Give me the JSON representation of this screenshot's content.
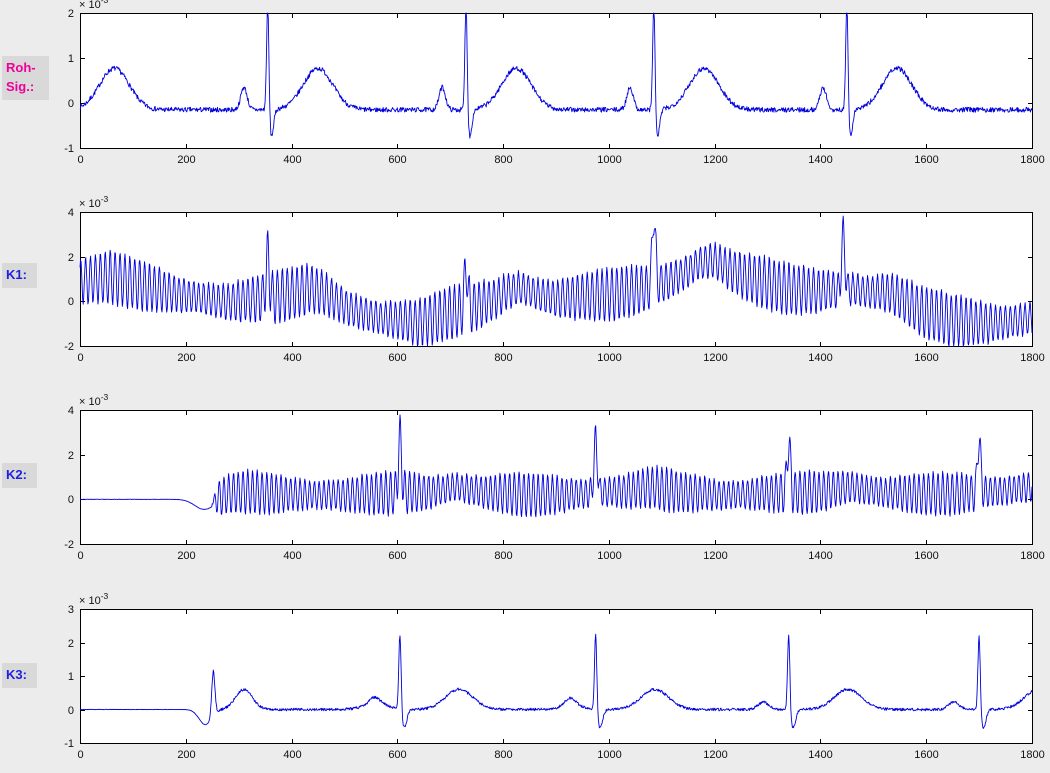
{
  "figure": {
    "background": "#ececec",
    "axes_background": "#ffffff",
    "axis_color": "#000000",
    "line_color": "#0000dd",
    "tick_label_color": "#111111",
    "label_box_background": "#d9d9d9"
  },
  "labels": [
    {
      "lines": [
        "Roh-",
        "Sig.:"
      ],
      "color": "#ee0099"
    },
    {
      "lines": [
        "K1:"
      ],
      "color": "#2020e0"
    },
    {
      "lines": [
        "K2:"
      ],
      "color": "#2020e0"
    },
    {
      "lines": [
        "K3:"
      ],
      "color": "#2020e0"
    }
  ],
  "chart_data": [
    {
      "type": "line",
      "name": "Roh-Sig.",
      "title": "",
      "xlabel": "",
      "ylabel": "",
      "unit_exponent": {
        "base": "× 10",
        "power": "-3"
      },
      "xlim": [
        0,
        1800
      ],
      "ylim": [
        -1,
        2
      ],
      "xticks": [
        0,
        200,
        400,
        600,
        800,
        1000,
        1200,
        1400,
        1600,
        1800
      ],
      "x_tick_labels": [
        "0",
        "200",
        "400",
        "600",
        "800",
        "1000",
        "1200",
        "1400",
        "1600",
        "1800"
      ],
      "yticks": [
        -1,
        0,
        1,
        2
      ],
      "y_tick_labels": [
        "-1",
        "0",
        "1",
        "2"
      ],
      "grid": false,
      "legend": null,
      "signal": {
        "kind": "ecg",
        "seed": 7,
        "baseline": -0.15,
        "noise": 0.055,
        "beats": [
          {
            "x": -30
          },
          {
            "x": 355
          },
          {
            "x": 730
          },
          {
            "x": 1085
          },
          {
            "x": 1450
          }
        ],
        "qrs": {
          "amp": 2.45,
          "width": 2.2,
          "dip": -0.6,
          "dip_offset": 7,
          "dip_width": 4
        },
        "p": {
          "offset": -45,
          "amp": 0.5,
          "width": 6
        },
        "t": {
          "offset": 95,
          "amp": 0.92,
          "width": 28
        }
      }
    },
    {
      "type": "line",
      "name": "K1",
      "title": "",
      "xlabel": "",
      "ylabel": "",
      "unit_exponent": {
        "base": "× 10",
        "power": "-3"
      },
      "xlim": [
        0,
        1800
      ],
      "ylim": [
        -2,
        4
      ],
      "xticks": [
        0,
        200,
        400,
        600,
        800,
        1000,
        1200,
        1400,
        1600,
        1800
      ],
      "x_tick_labels": [
        "0",
        "200",
        "400",
        "600",
        "800",
        "1000",
        "1200",
        "1400",
        "1600",
        "1800"
      ],
      "yticks": [
        -2,
        0,
        2,
        4
      ],
      "y_tick_labels": [
        "-2",
        "0",
        "2",
        "4"
      ],
      "grid": false,
      "legend": null,
      "signal": {
        "kind": "osc",
        "seed": 11,
        "noise": 0.08,
        "drift": [
          [
            0,
            0.9
          ],
          [
            60,
            1.1
          ],
          [
            130,
            0.6
          ],
          [
            200,
            0.25
          ],
          [
            280,
            -0.05
          ],
          [
            355,
            0.2
          ],
          [
            430,
            0.3
          ],
          [
            500,
            -0.3
          ],
          [
            570,
            -0.75
          ],
          [
            640,
            -0.95
          ],
          [
            700,
            -0.55
          ],
          [
            760,
            -0.15
          ],
          [
            830,
            0.25
          ],
          [
            900,
            0.1
          ],
          [
            980,
            0.25
          ],
          [
            1060,
            0.5
          ],
          [
            1140,
            1.1
          ],
          [
            1200,
            1.55
          ],
          [
            1270,
            1.0
          ],
          [
            1340,
            0.55
          ],
          [
            1400,
            0.45
          ],
          [
            1460,
            0.55
          ],
          [
            1520,
            0.1
          ],
          [
            1590,
            -0.5
          ],
          [
            1660,
            -0.9
          ],
          [
            1730,
            -1.0
          ],
          [
            1800,
            -0.75
          ]
        ],
        "osc": {
          "period": 9.3,
          "amp": 0.95,
          "amp_mod": 0.25,
          "mod_period": 310,
          "phase": 0.7
        },
        "spike": {
          "width": 3
        },
        "beats": [
          {
            "x": 355,
            "amp": 1.9
          },
          {
            "x": 730,
            "amp": 1.9
          },
          {
            "x": 1085,
            "amp": 3.3
          },
          {
            "x": 1443,
            "amp": 2.5
          }
        ],
        "t": {
          "offset": 95,
          "amp": 0.35,
          "width": 30
        }
      }
    },
    {
      "type": "line",
      "name": "K2",
      "title": "",
      "xlabel": "",
      "ylabel": "",
      "unit_exponent": {
        "base": "× 10",
        "power": "-3"
      },
      "xlim": [
        0,
        1800
      ],
      "ylim": [
        -2,
        4
      ],
      "xticks": [
        0,
        200,
        400,
        600,
        800,
        1000,
        1200,
        1400,
        1600,
        1800
      ],
      "x_tick_labels": [
        "0",
        "200",
        "400",
        "600",
        "800",
        "1000",
        "1200",
        "1400",
        "1600",
        "1800"
      ],
      "yticks": [
        -2,
        0,
        2,
        4
      ],
      "y_tick_labels": [
        "-2",
        "0",
        "2",
        "4"
      ],
      "grid": false,
      "legend": null,
      "signal": {
        "kind": "osc",
        "seed": 23,
        "noise": 0.07,
        "onset": 250,
        "pre_level": 0,
        "pre_noise": 0.008,
        "bumps": [
          {
            "x": 235,
            "amp": -0.45,
            "w": 18
          }
        ],
        "drift": [
          [
            0,
            0
          ],
          [
            250,
            0.15
          ],
          [
            310,
            0.35
          ],
          [
            360,
            0.25
          ],
          [
            420,
            0.2
          ],
          [
            500,
            0.2
          ],
          [
            560,
            0.25
          ],
          [
            605,
            0.3
          ],
          [
            660,
            0.3
          ],
          [
            710,
            0.55
          ],
          [
            770,
            0.3
          ],
          [
            840,
            0.2
          ],
          [
            910,
            0.2
          ],
          [
            975,
            0.3
          ],
          [
            1030,
            0.35
          ],
          [
            1080,
            0.55
          ],
          [
            1140,
            0.3
          ],
          [
            1210,
            0.2
          ],
          [
            1280,
            0.25
          ],
          [
            1340,
            0.3
          ],
          [
            1400,
            0.35
          ],
          [
            1455,
            0.55
          ],
          [
            1520,
            0.3
          ],
          [
            1590,
            0.25
          ],
          [
            1650,
            0.25
          ],
          [
            1700,
            0.3
          ],
          [
            1750,
            0.4
          ],
          [
            1800,
            0.55
          ]
        ],
        "osc": {
          "period": 9.0,
          "amp": 0.8,
          "amp_mod": 0.18,
          "mod_period": 260,
          "ramp": 12,
          "phase": 0
        },
        "spike": {
          "width": 3
        },
        "beats": [
          {
            "x": 605,
            "amp": 2.5
          },
          {
            "x": 975,
            "amp": 2.4
          },
          {
            "x": 1340,
            "amp": 2.3
          },
          {
            "x": 1700,
            "amp": 2.45
          }
        ]
      }
    },
    {
      "type": "line",
      "name": "K3",
      "title": "",
      "xlabel": "",
      "ylabel": "",
      "unit_exponent": {
        "base": "× 10",
        "power": "-3"
      },
      "xlim": [
        0,
        1800
      ],
      "ylim": [
        -1,
        3
      ],
      "xticks": [
        0,
        200,
        400,
        600,
        800,
        1000,
        1200,
        1400,
        1600,
        1800
      ],
      "x_tick_labels": [
        "0",
        "200",
        "400",
        "600",
        "800",
        "1000",
        "1200",
        "1400",
        "1600",
        "1800"
      ],
      "yticks": [
        -1,
        0,
        1,
        2,
        3
      ],
      "y_tick_labels": [
        "-1",
        "0",
        "1",
        "2",
        "3"
      ],
      "grid": false,
      "legend": null,
      "signal": {
        "kind": "ecg",
        "seed": 31,
        "baseline": 0,
        "noise": 0.04,
        "onset": 248,
        "pre_level": 0,
        "pre_noise": 0.006,
        "bumps": [
          {
            "x": 237,
            "amp": -0.45,
            "w": 12
          },
          {
            "x": 252,
            "amp": 1.35,
            "w": 3
          },
          {
            "x": 310,
            "amp": 0.6,
            "w": 16
          },
          {
            "x": 560,
            "amp": 0.15,
            "w": 25
          },
          {
            "x": 930,
            "amp": 0.12,
            "w": 20
          }
        ],
        "beats": [
          {
            "x": 605
          },
          {
            "x": 975
          },
          {
            "x": 1340
          },
          {
            "x": 1700
          }
        ],
        "qrs": {
          "amp": 2.35,
          "width": 2.2,
          "dip": -0.55,
          "dip_offset": 8,
          "dip_width": 5
        },
        "p": {
          "offset": -48,
          "amp": 0.22,
          "width": 10
        },
        "t": {
          "offset": 112,
          "amp": 0.6,
          "width": 26
        }
      }
    }
  ]
}
